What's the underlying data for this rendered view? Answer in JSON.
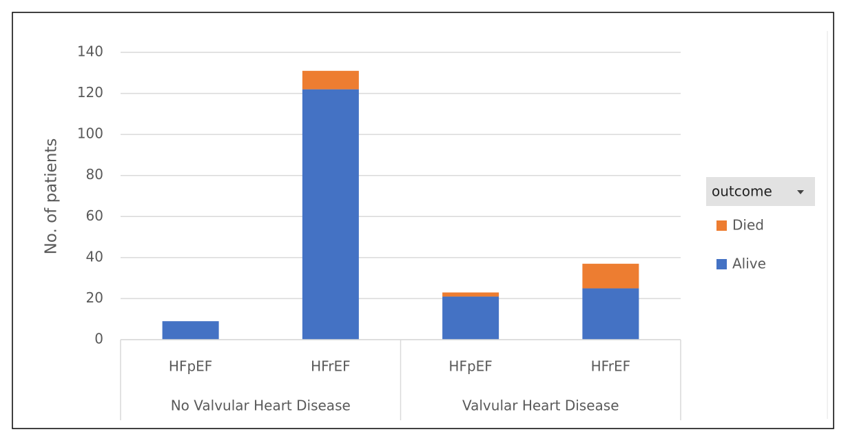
{
  "chart_data": {
    "type": "stacked_bar",
    "y_label": "No. of patients",
    "categories": [
      "HFpEF",
      "HFrEF",
      "HFpEF",
      "HFrEF"
    ],
    "groups": [
      "No Valvular Heart Disease",
      "Valvular Heart Disease"
    ],
    "series": [
      {
        "name": "Alive",
        "color": "#4472c4",
        "values": [
          9,
          122,
          21,
          25
        ]
      },
      {
        "name": "Died",
        "color": "#ed7d31",
        "values": [
          0,
          9,
          2,
          12
        ]
      }
    ],
    "legend_title": "outcome",
    "ylim": [
      0,
      140
    ],
    "yticks": [
      0,
      20,
      40,
      60,
      80,
      100,
      120,
      140
    ],
    "grid": true
  }
}
